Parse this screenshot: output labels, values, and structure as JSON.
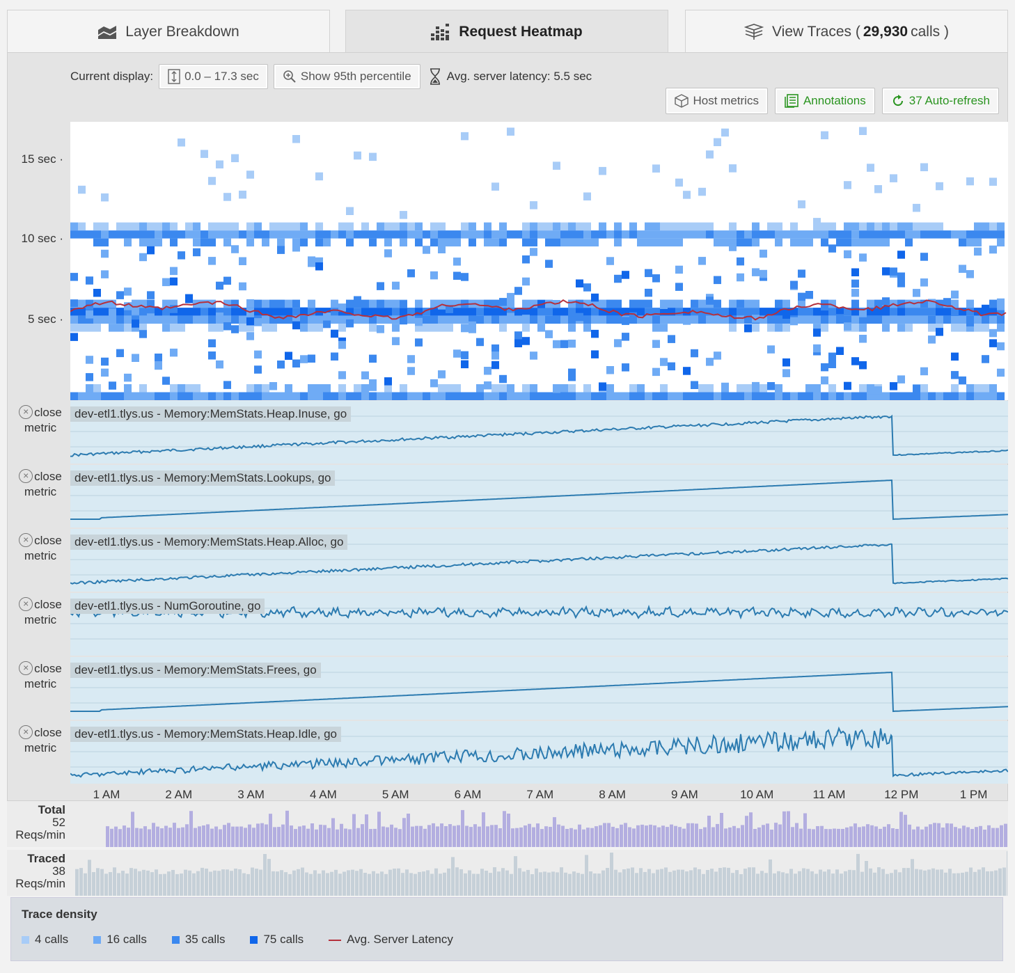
{
  "tabs": [
    {
      "label": "Layer Breakdown",
      "icon": "layers-icon"
    },
    {
      "label": "Request Heatmap",
      "icon": "heatmap-icon"
    },
    {
      "label_prefix": "View Traces (",
      "count": "29,930",
      "label_suffix": "calls )",
      "icon": "traces-icon"
    }
  ],
  "toolbar": {
    "current_display_label": "Current display:",
    "range_label": "0.0 – 17.3 sec",
    "percentile_label": "Show 95th percentile",
    "avg_latency_label": "Avg. server latency: 5.5 sec",
    "host_metrics_label": "Host metrics",
    "annotations_label": "Annotations",
    "autorefresh_label": "37 Auto-refresh"
  },
  "heatmap": {
    "y_ticks": [
      "15 sec",
      "10 sec",
      "5 sec"
    ],
    "y_tick_values": [
      15,
      10,
      5
    ],
    "y_max": 17.3,
    "colors": {
      "c4": "#a8ccf7",
      "c16": "#6fabf5",
      "c35": "#3b88ef",
      "c75": "#1066ea",
      "latency": "#b5303c"
    }
  },
  "metrics": [
    {
      "close_label": "close",
      "close_label2": "metric",
      "title": "dev-etl1.tlys.us - Memory:MemStats.Heap.Inuse, go",
      "shape": "ramp-noisy"
    },
    {
      "close_label": "close",
      "close_label2": "metric",
      "title": "dev-etl1.tlys.us - Memory:MemStats.Lookups, go",
      "shape": "ramp-smooth"
    },
    {
      "close_label": "close",
      "close_label2": "metric",
      "title": "dev-etl1.tlys.us - Memory:MemStats.Heap.Alloc, go",
      "shape": "ramp-noisy"
    },
    {
      "close_label": "close",
      "close_label2": "metric",
      "title": "dev-etl1.tlys.us - NumGoroutine, go",
      "shape": "flat-noisy"
    },
    {
      "close_label": "close",
      "close_label2": "metric",
      "title": "dev-etl1.tlys.us - Memory:MemStats.Frees, go",
      "shape": "ramp-smooth"
    },
    {
      "close_label": "close",
      "close_label2": "metric",
      "title": "dev-etl1.tlys.us - Memory:MemStats.Heap.Idle, go",
      "shape": "ramp-very-noisy"
    }
  ],
  "x_axis": [
    "1 AM",
    "2 AM",
    "3 AM",
    "4 AM",
    "5 AM",
    "6 AM",
    "7 AM",
    "8 AM",
    "9 AM",
    "10 AM",
    "11 AM",
    "12 PM",
    "1 PM"
  ],
  "total": {
    "title": "Total",
    "value": "52",
    "unit": "Reqs/min",
    "color": "#b3aee0"
  },
  "traced": {
    "title": "Traced",
    "value": "38",
    "unit": "Reqs/min",
    "color": "#c6d0d8"
  },
  "legend": {
    "title": "Trace density",
    "items": [
      {
        "label": "4 calls",
        "color": "#a8ccf7"
      },
      {
        "label": "16 calls",
        "color": "#6fabf5"
      },
      {
        "label": "35 calls",
        "color": "#3b88ef"
      },
      {
        "label": "75 calls",
        "color": "#1066ea"
      }
    ],
    "line_label": "Avg. Server Latency",
    "line_color": "#b5303c"
  }
}
